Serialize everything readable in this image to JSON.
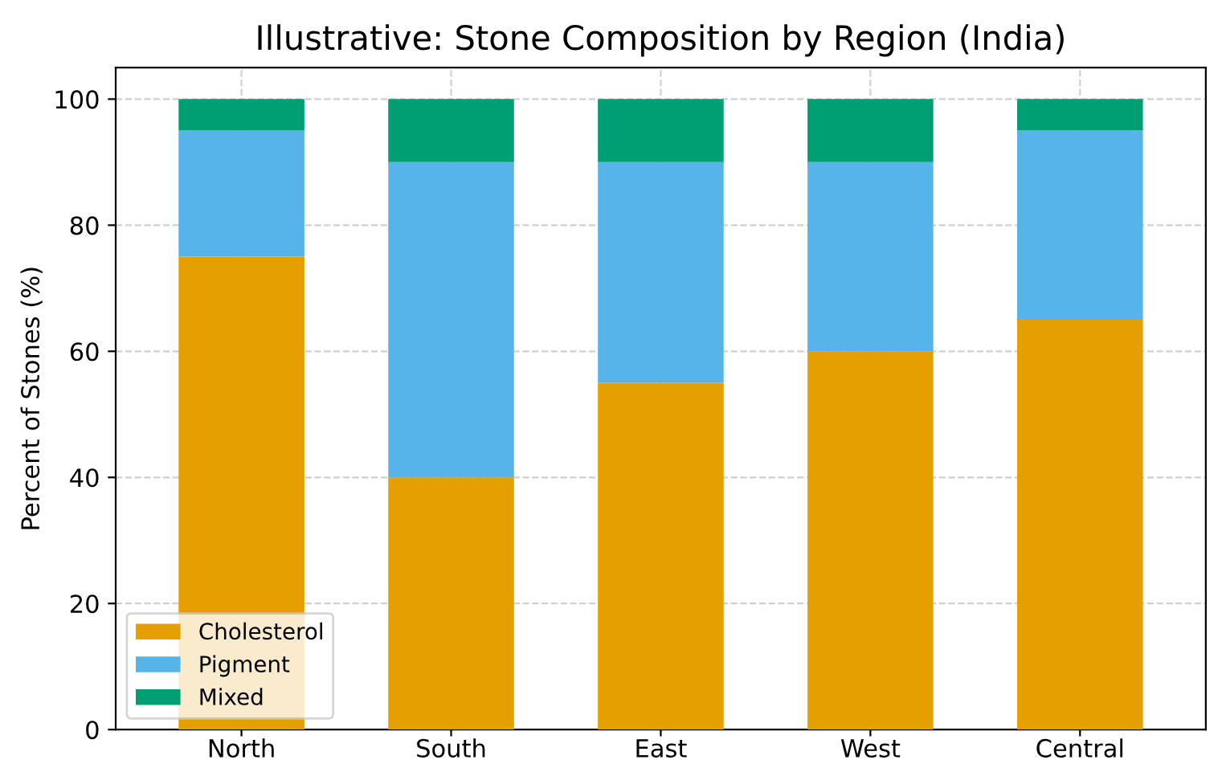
{
  "chart_data": {
    "type": "bar",
    "title": "Illustrative: Stone Composition by Region (India)",
    "ylabel": "Percent of Stones (%)",
    "categories": [
      "North",
      "South",
      "East",
      "West",
      "Central"
    ],
    "series": [
      {
        "name": "Cholesterol",
        "color": "#e69f00",
        "values": [
          75,
          40,
          55,
          60,
          65
        ]
      },
      {
        "name": "Pigment",
        "color": "#56b4e9",
        "values": [
          20,
          50,
          35,
          30,
          30
        ]
      },
      {
        "name": "Mixed",
        "color": "#009e73",
        "values": [
          5,
          10,
          10,
          10,
          5
        ]
      }
    ],
    "stacked": true,
    "ylim": [
      0,
      105
    ],
    "yticks": [
      0,
      20,
      40,
      60,
      80,
      100
    ],
    "grid": true,
    "legend": "bottom left"
  }
}
